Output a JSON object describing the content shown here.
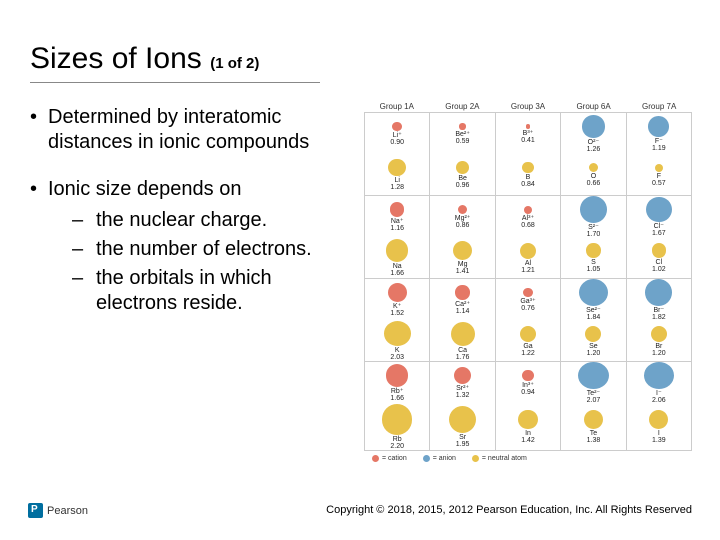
{
  "title": {
    "main": "Sizes of Ions",
    "sub": "(1 of 2)"
  },
  "bullets": [
    {
      "text": "Determined by interatomic distances in ionic compounds",
      "sub": []
    },
    {
      "text": "Ionic size depends on",
      "sub": [
        "the nuclear charge.",
        "the number of electrons.",
        "the orbitals in which electrons reside."
      ]
    }
  ],
  "chart": {
    "headers": [
      "Group 1A",
      "Group 2A",
      "Group 3A",
      "Group 6A",
      "Group 7A"
    ],
    "palette": {
      "cation": "#e57766",
      "anion": "#6ea3c9",
      "neutral": "#e8c24b"
    },
    "legend": [
      {
        "label": "= cation",
        "color": "#e57766"
      },
      {
        "label": "= anion",
        "color": "#6ea3c9"
      },
      {
        "label": "= neutral atom",
        "color": "#e8c24b"
      }
    ],
    "rows": [
      [
        {
          "l": "Li⁺",
          "v": "0.90",
          "r": 6,
          "k": "cation"
        },
        {
          "l": "Be²⁺",
          "v": "0.59",
          "r": 4,
          "k": "cation"
        },
        {
          "l": "B³⁺",
          "v": "0.41",
          "r": 3,
          "k": "cation"
        },
        {
          "l": "O²⁻",
          "v": "1.26",
          "r": 14,
          "k": "anion"
        },
        {
          "l": "F⁻",
          "v": "1.19",
          "r": 13,
          "k": "anion"
        }
      ],
      [
        {
          "l": "Li",
          "v": "1.28",
          "r": 11,
          "k": "neutral"
        },
        {
          "l": "Be",
          "v": "0.96",
          "r": 8,
          "k": "neutral"
        },
        {
          "l": "B",
          "v": "0.84",
          "r": 7,
          "k": "neutral"
        },
        {
          "l": "O",
          "v": "0.66",
          "r": 6,
          "k": "neutral"
        },
        {
          "l": "F",
          "v": "0.57",
          "r": 5,
          "k": "neutral"
        }
      ],
      [
        {
          "l": "Na⁺",
          "v": "1.16",
          "r": 9,
          "k": "cation"
        },
        {
          "l": "Mg²⁺",
          "v": "0.86",
          "r": 6,
          "k": "cation"
        },
        {
          "l": "Al³⁺",
          "v": "0.68",
          "r": 5,
          "k": "cation"
        },
        {
          "l": "S²⁻",
          "v": "1.70",
          "r": 17,
          "k": "anion"
        },
        {
          "l": "Cl⁻",
          "v": "1.67",
          "r": 16,
          "k": "anion"
        }
      ],
      [
        {
          "l": "Na",
          "v": "1.66",
          "r": 14,
          "k": "neutral"
        },
        {
          "l": "Mg",
          "v": "1.41",
          "r": 12,
          "k": "neutral"
        },
        {
          "l": "Al",
          "v": "1.21",
          "r": 10,
          "k": "neutral"
        },
        {
          "l": "S",
          "v": "1.05",
          "r": 9,
          "k": "neutral"
        },
        {
          "l": "Cl",
          "v": "1.02",
          "r": 9,
          "k": "neutral"
        }
      ],
      [
        {
          "l": "K⁺",
          "v": "1.52",
          "r": 12,
          "k": "cation"
        },
        {
          "l": "Ca²⁺",
          "v": "1.14",
          "r": 9,
          "k": "cation"
        },
        {
          "l": "Ga³⁺",
          "v": "0.76",
          "r": 6,
          "k": "cation"
        },
        {
          "l": "Se²⁻",
          "v": "1.84",
          "r": 18,
          "k": "anion"
        },
        {
          "l": "Br⁻",
          "v": "1.82",
          "r": 17,
          "k": "anion"
        }
      ],
      [
        {
          "l": "K",
          "v": "2.03",
          "r": 17,
          "k": "neutral"
        },
        {
          "l": "Ca",
          "v": "1.76",
          "r": 15,
          "k": "neutral"
        },
        {
          "l": "Ga",
          "v": "1.22",
          "r": 10,
          "k": "neutral"
        },
        {
          "l": "Se",
          "v": "1.20",
          "r": 10,
          "k": "neutral"
        },
        {
          "l": "Br",
          "v": "1.20",
          "r": 10,
          "k": "neutral"
        }
      ],
      [
        {
          "l": "Rb⁺",
          "v": "1.66",
          "r": 14,
          "k": "cation"
        },
        {
          "l": "Sr²⁺",
          "v": "1.32",
          "r": 11,
          "k": "cation"
        },
        {
          "l": "In³⁺",
          "v": "0.94",
          "r": 7,
          "k": "cation"
        },
        {
          "l": "Te²⁻",
          "v": "2.07",
          "r": 19,
          "k": "anion"
        },
        {
          "l": "I⁻",
          "v": "2.06",
          "r": 19,
          "k": "anion"
        }
      ],
      [
        {
          "l": "Rb",
          "v": "2.20",
          "r": 19,
          "k": "neutral"
        },
        {
          "l": "Sr",
          "v": "1.95",
          "r": 17,
          "k": "neutral"
        },
        {
          "l": "In",
          "v": "1.42",
          "r": 12,
          "k": "neutral"
        },
        {
          "l": "Te",
          "v": "1.38",
          "r": 12,
          "k": "neutral"
        },
        {
          "l": "I",
          "v": "1.39",
          "r": 12,
          "k": "neutral"
        }
      ]
    ]
  },
  "logo": {
    "brand": "Pearson"
  },
  "copyright": "Copyright © 2018, 2015, 2012 Pearson Education, Inc. All Rights Reserved"
}
